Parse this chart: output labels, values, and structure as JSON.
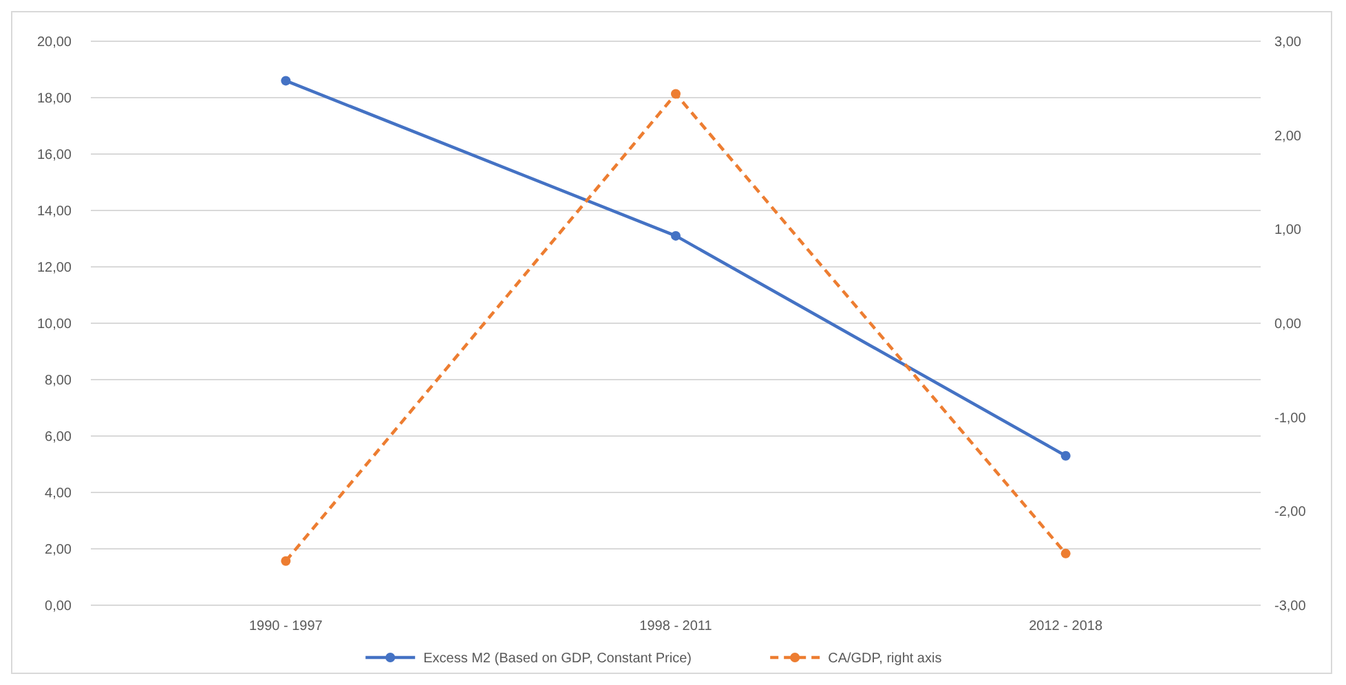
{
  "chart_data": {
    "type": "line",
    "categories": [
      "1990 - 1997",
      "1998 - 2011",
      "2012 - 2018"
    ],
    "series": [
      {
        "name": "Excess M2 (Based on GDP, Constant Price)",
        "color": "#4472c4",
        "values": [
          18.6,
          13.1,
          5.3
        ],
        "line_style": "solid"
      },
      {
        "name": "CA/GDP, right axis",
        "color": "#ed7d31",
        "values": [
          -2.53,
          2.44,
          -2.45
        ],
        "axis": "y2",
        "line_style": "dashed"
      }
    ],
    "ylim": [
      0,
      20
    ],
    "yticks": [
      {
        "value": 0,
        "label": "0,00"
      },
      {
        "value": 2,
        "label": "2,00"
      },
      {
        "value": 4,
        "label": "4,00"
      },
      {
        "value": 6,
        "label": "6,00"
      },
      {
        "value": 8,
        "label": "8,00"
      },
      {
        "value": 10,
        "label": "10,00"
      },
      {
        "value": 12,
        "label": "12,00"
      },
      {
        "value": 14,
        "label": "14,00"
      },
      {
        "value": 16,
        "label": "16,00"
      },
      {
        "value": 18,
        "label": "18,00"
      },
      {
        "value": 20,
        "label": "20,00"
      }
    ],
    "y2lim": [
      -3,
      3
    ],
    "y2ticks": [
      {
        "value": -3,
        "label": "-3,00"
      },
      {
        "value": -2,
        "label": "-2,00"
      },
      {
        "value": -1,
        "label": "-1,00"
      },
      {
        "value": 0,
        "label": "0,00"
      },
      {
        "value": 1,
        "label": "1,00"
      },
      {
        "value": 2,
        "label": "2,00"
      },
      {
        "value": 3,
        "label": "3,00"
      }
    ],
    "grid": "y",
    "legend": "bottom",
    "marker": "circle"
  }
}
